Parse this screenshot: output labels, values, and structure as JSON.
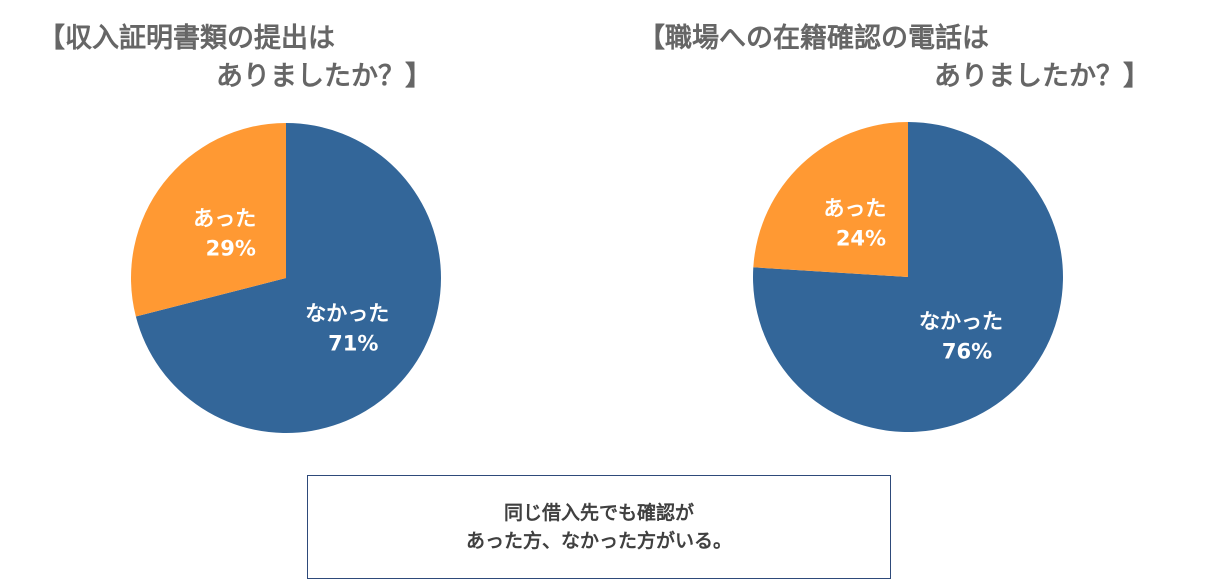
{
  "chart_data": [
    {
      "type": "pie",
      "title": "【収入証明書類の提出はありましたか？】",
      "title_lines": [
        "【収入証明書類の提出は",
        "ありましたか？】"
      ],
      "slices": [
        {
          "label": "なかった",
          "value": 71,
          "value_label": "71%",
          "color": "#336699"
        },
        {
          "label": "あった",
          "value": 29,
          "value_label": "29%",
          "color": "#ff9933"
        }
      ]
    },
    {
      "type": "pie",
      "title": "【職場への在籍確認の電話はありましたか？】",
      "title_lines": [
        "【職場への在籍確認の電話は",
        "ありましたか？】"
      ],
      "slices": [
        {
          "label": "なかった",
          "value": 76,
          "value_label": "76%",
          "color": "#336699"
        },
        {
          "label": "あった",
          "value": 24,
          "value_label": "24%",
          "color": "#ff9933"
        }
      ]
    }
  ],
  "note": {
    "lines": [
      "同じ借入先でも確認が",
      "あった方、なかった方がいる。"
    ]
  }
}
